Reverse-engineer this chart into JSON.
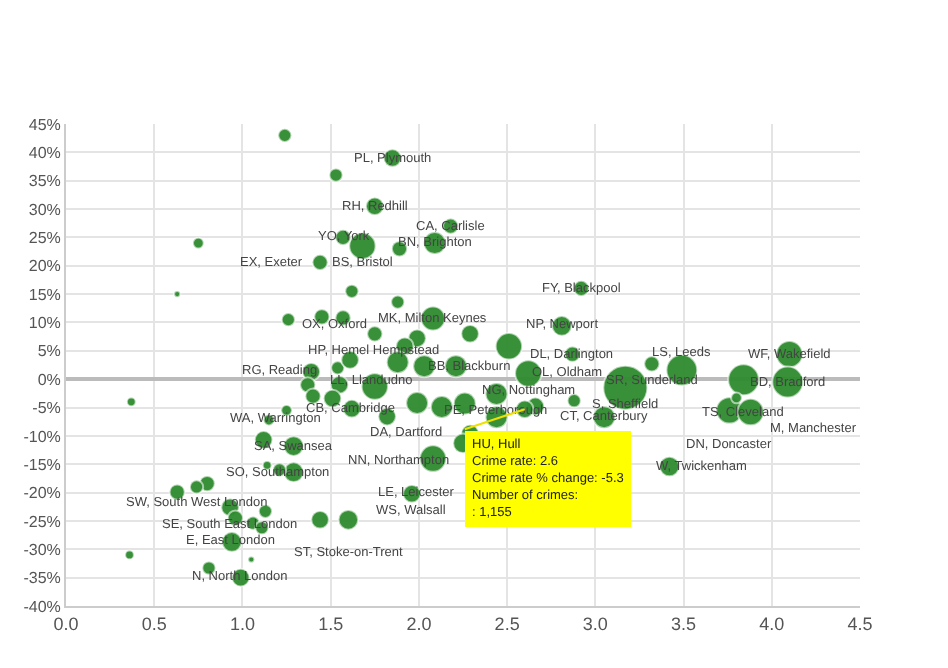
{
  "chart_data": {
    "type": "bubble",
    "xlim": [
      0,
      4.5
    ],
    "xticks": [
      {
        "value": 0,
        "label": "0.0"
      },
      0.5,
      {
        "value": 1,
        "label": "1.0"
      },
      1.5,
      {
        "value": 2,
        "label": "2.0"
      },
      2.5,
      {
        "value": 3,
        "label": "3.0"
      },
      3.5,
      {
        "value": 4,
        "label": "4.0"
      },
      4.5
    ],
    "ylim": [
      -40,
      45
    ],
    "yticks": [
      {
        "value": -40,
        "label": "-40%"
      },
      {
        "value": -35,
        "label": "-35%"
      },
      {
        "value": -30,
        "label": "-30%"
      },
      {
        "value": -25,
        "label": "-25%"
      },
      {
        "value": -20,
        "label": "-20%"
      },
      {
        "value": -15,
        "label": "-15%"
      },
      {
        "value": -10,
        "label": "-10%"
      },
      {
        "value": -5,
        "label": "-5%"
      },
      {
        "value": 0,
        "label": "0%"
      },
      {
        "value": 5,
        "label": "5%"
      },
      {
        "value": 10,
        "label": "10%"
      },
      {
        "value": 15,
        "label": "15%"
      },
      {
        "value": 20,
        "label": "20%"
      },
      {
        "value": 25,
        "label": "25%"
      },
      {
        "value": 30,
        "label": "30%"
      },
      {
        "value": 35,
        "label": "35%"
      },
      {
        "value": 40,
        "label": "40%"
      },
      {
        "value": 45,
        "label": "45%"
      }
    ],
    "grid": true,
    "series": [
      {
        "color": "#2e8b2e",
        "x": [
          1.24,
          1.85,
          1.53,
          1.75,
          2.18,
          2.09,
          1.89,
          1.68,
          1.57,
          1.44,
          0.75,
          0.63,
          1.62,
          1.88,
          1.26,
          1.45,
          1.57,
          2.08,
          1.75,
          1.99,
          2.29,
          1.92,
          2.51,
          2.87,
          2.81,
          2.92,
          3.32,
          3.49,
          3.17,
          4.1,
          4.09,
          3.84,
          3.76,
          3.88,
          3.8,
          2.62,
          2.44,
          2.66,
          2.88,
          3.05,
          2.44,
          3.42,
          2.6,
          1.62,
          1.82,
          1.99,
          2.13,
          2.26,
          1.39,
          1.54,
          1.61,
          1.88,
          2.03,
          2.21,
          1.37,
          1.55,
          1.75,
          1.4,
          1.51,
          1.25,
          0.37,
          1.15,
          1.12,
          1.29,
          2.29,
          2.25,
          2.08,
          1.29,
          1.21,
          1.14,
          1.96,
          0.8,
          0.63,
          0.74,
          0.93,
          0.96,
          1.13,
          1.06,
          1.11,
          1.6,
          1.44,
          0.94,
          0.36,
          1.05,
          0.99,
          0.81
        ],
        "values": [
          43,
          39,
          36,
          30.5,
          27,
          24,
          23,
          23.5,
          25,
          20.6,
          24,
          15,
          15.5,
          13.6,
          10.5,
          11,
          10.8,
          10.7,
          8,
          7.2,
          8,
          5.8,
          5.8,
          4.4,
          9.4,
          16,
          2.7,
          1.6,
          -1.5,
          4.4,
          -0.5,
          -0.1,
          -5.5,
          -5.8,
          -3.3,
          1,
          -2.6,
          -4.8,
          -3.8,
          -6.7,
          -6.7,
          -15.4,
          -5.3,
          -5.2,
          -6.6,
          -4.2,
          -4.9,
          -4.3,
          1.3,
          2,
          3.4,
          3,
          2.3,
          2.3,
          -1,
          -1,
          -1.3,
          -3,
          -3.4,
          -5.5,
          -4,
          -7.2,
          -10.7,
          -11.8,
          -9.6,
          -11.3,
          -14,
          -16.4,
          -16,
          -15.2,
          -20.2,
          -18.4,
          -19.9,
          -19,
          -22.6,
          -24.5,
          -23.3,
          -25.4,
          -26.2,
          -24.8,
          -24.8,
          -28.7,
          -31,
          -31.8,
          -35,
          -33.3
        ],
        "sizes": [
          0.09,
          0.16,
          0.09,
          0.16,
          0.12,
          0.25,
          0.12,
          0.36,
          0.12,
          0.12,
          0.06,
          0.02,
          0.09,
          0.09,
          0.09,
          0.12,
          0.12,
          0.3,
          0.12,
          0.16,
          0.16,
          0.16,
          0.36,
          0.12,
          0.2,
          0.12,
          0.12,
          0.49,
          1,
          0.36,
          0.49,
          0.49,
          0.36,
          0.36,
          0.06,
          0.36,
          0.25,
          0.16,
          0.09,
          0.25,
          0.25,
          0.2,
          0.16,
          0.16,
          0.16,
          0.25,
          0.25,
          0.25,
          0.16,
          0.09,
          0.16,
          0.25,
          0.25,
          0.25,
          0.12,
          0.16,
          0.36,
          0.12,
          0.16,
          0.06,
          0.04,
          0.06,
          0.16,
          0.2,
          0.16,
          0.2,
          0.36,
          0.2,
          0.09,
          0.04,
          0.16,
          0.12,
          0.12,
          0.09,
          0.16,
          0.12,
          0.09,
          0.09,
          0.09,
          0.2,
          0.16,
          0.2,
          0.04,
          0.02,
          0.16,
          0.09
        ]
      }
    ],
    "annotations": [
      {
        "text": "PL, Plymouth",
        "x": 1.85,
        "y": 39
      },
      {
        "text": "RH, Redhill",
        "x": 1.75,
        "y": 30.5
      },
      {
        "text": "CA, Carlisle",
        "x": 2.18,
        "y": 27
      },
      {
        "text": "BN, Brighton",
        "x": 2.09,
        "y": 24
      },
      {
        "text": "YO, York",
        "x": 1.57,
        "y": 25
      },
      {
        "text": "BS, Bristol",
        "x": 1.68,
        "y": 23.5
      },
      {
        "text": "EX, Exeter",
        "x": 1.44,
        "y": 20.6
      },
      {
        "text": "MK, Milton Keynes",
        "x": 2.08,
        "y": 10.7
      },
      {
        "text": "HP, Hemel Hempstead",
        "x": 1.75,
        "y": 8
      },
      {
        "text": "BB, Blackburn",
        "x": 2.29,
        "y": 8
      },
      {
        "text": "LL, Llandudno",
        "x": 1.92,
        "y": 5.8
      },
      {
        "text": "FY, Blackpool",
        "x": 2.92,
        "y": 16
      },
      {
        "text": "NP, Newport",
        "x": 2.81,
        "y": 9.4
      },
      {
        "text": "DL, Darlington",
        "x": 2.87,
        "y": 4.4
      },
      {
        "text": "SR, Sunderland",
        "x": 3.32,
        "y": 2.7
      },
      {
        "text": "LS, Leeds",
        "x": 3.49,
        "y": 1.6
      },
      {
        "text": "S, Sheffield",
        "x": 3.17,
        "y": -1.5
      },
      {
        "text": "WF, Wakefield",
        "x": 4.1,
        "y": 4.4
      },
      {
        "text": "BD, Bradford",
        "x": 4.09,
        "y": -0.5
      },
      {
        "text": "TS, Cleveland",
        "x": 3.84,
        "y": -0.1
      },
      {
        "text": "DN, Doncaster",
        "x": 3.76,
        "y": -5.5
      },
      {
        "text": "M, Manchester",
        "x": 3.88,
        "y": -5.8
      },
      {
        "text": "NG, Nottingham",
        "x": 2.62,
        "y": 1
      },
      {
        "text": "PE, Peterborough",
        "x": 2.44,
        "y": -2.6
      },
      {
        "text": "OL, Oldham",
        "x": 2.66,
        "y": -4.8
      },
      {
        "text": "CT, Canterbury",
        "x": 3.05,
        "y": -6.7
      },
      {
        "text": "W, Twickenham",
        "x": 3.42,
        "y": -15.4
      },
      {
        "text": "CB, Cambridge",
        "x": 1.62,
        "y": -5.2
      },
      {
        "text": "RG, Reading",
        "x": 1.39,
        "y": 1.3
      },
      {
        "text": "OX, Oxford",
        "x": 1.61,
        "y": 3.4
      },
      {
        "text": "WA, Warrington",
        "x": 1.55,
        "y": -1
      },
      {
        "text": "SA, Swansea",
        "x": 1.29,
        "y": -11.8
      },
      {
        "text": "DA, Dartford",
        "x": 2.29,
        "y": -9.6
      },
      {
        "text": "NN, Northampton",
        "x": 2.25,
        "y": -11.3
      },
      {
        "text": "LE, Leicester",
        "x": 2.08,
        "y": -14
      },
      {
        "text": "SO, Southampton",
        "x": 1.29,
        "y": -16.4
      },
      {
        "text": "WS, Walsall",
        "x": 1.96,
        "y": -20.2
      },
      {
        "text": "SW, South West London",
        "x": 0.74,
        "y": -19
      },
      {
        "text": "SE, South East London",
        "x": 0.93,
        "y": -22.6
      },
      {
        "text": "ST, Stoke-on-Trent",
        "x": 1.6,
        "y": -24.8
      },
      {
        "text": "E, East London",
        "x": 0.94,
        "y": -28.7
      },
      {
        "text": "N, North London",
        "x": 0.99,
        "y": -35
      },
      {
        "text": "HU, Hull\nCrime rate: 2.6\nCrime rate % change: -5.3\nNumber of crimes:\n: 1,155",
        "x": 2.6,
        "y": -5.3
      }
    ]
  }
}
